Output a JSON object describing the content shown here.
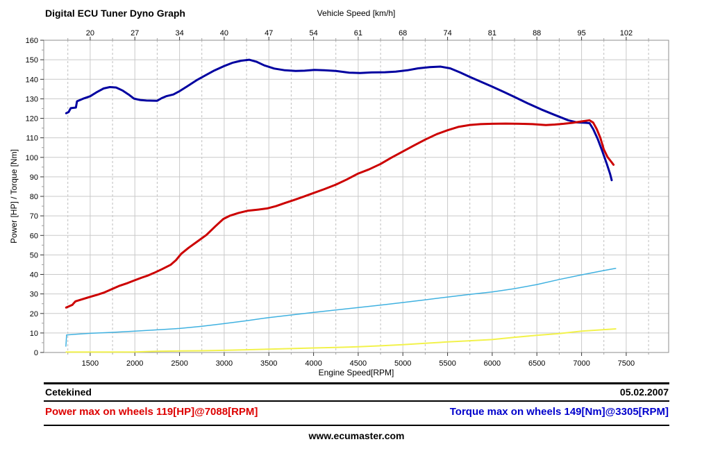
{
  "chart_data": {
    "type": "line",
    "title": "Digital ECU Tuner Dyno Graph",
    "top_axis": {
      "label": "Vehicle Speed [km/h]",
      "tick_labels": [
        "20",
        "27",
        "34",
        "40",
        "47",
        "54",
        "61",
        "68",
        "74",
        "81",
        "88",
        "95",
        "102"
      ]
    },
    "x_axis": {
      "label": "Engine Speed[RPM]",
      "ticks": [
        1500,
        2000,
        2500,
        3000,
        3500,
        4000,
        4500,
        5000,
        5500,
        6000,
        6500,
        7000,
        7500
      ],
      "minor_step": 250,
      "range": [
        980,
        7975
      ]
    },
    "y_axis": {
      "label": "Power [HP] / Torque [Nm]",
      "ticks": [
        0,
        10,
        20,
        30,
        40,
        50,
        60,
        70,
        80,
        90,
        100,
        110,
        120,
        130,
        140,
        150,
        160
      ],
      "minor_step": 5,
      "range": [
        0,
        160
      ]
    },
    "grid": {
      "major": "#c9c9c9",
      "minor": "#bdbdbd",
      "border": "#8c8c8c",
      "tick_major": "#333333",
      "tick_minor": "#a0a0a0"
    },
    "series": [
      {
        "name": "yellow-line",
        "color": "#f2f24b",
        "width": 2,
        "points": [
          [
            1231,
            0.2
          ],
          [
            1600,
            0.2
          ],
          [
            2000,
            0.3
          ],
          [
            2250,
            0.6
          ],
          [
            2500,
            0.8
          ],
          [
            2750,
            0.9
          ],
          [
            3000,
            1.1
          ],
          [
            3250,
            1.4
          ],
          [
            3500,
            1.7
          ],
          [
            3750,
            2.0
          ],
          [
            4000,
            2.3
          ],
          [
            4250,
            2.6
          ],
          [
            4500,
            2.9
          ],
          [
            4750,
            3.4
          ],
          [
            5000,
            4.0
          ],
          [
            5250,
            4.7
          ],
          [
            5500,
            5.4
          ],
          [
            5750,
            6.0
          ],
          [
            6000,
            6.6
          ],
          [
            6250,
            7.8
          ],
          [
            6500,
            8.8
          ],
          [
            6750,
            9.7
          ],
          [
            7000,
            10.9
          ],
          [
            7250,
            11.7
          ],
          [
            7382,
            12.1
          ]
        ]
      },
      {
        "name": "cyan-line",
        "color": "#3fb1e0",
        "width": 1.5,
        "points": [
          [
            1228,
            3.2
          ],
          [
            1236,
            9.0
          ],
          [
            1350,
            9.4
          ],
          [
            1500,
            9.8
          ],
          [
            1750,
            10.3
          ],
          [
            2000,
            10.9
          ],
          [
            2250,
            11.6
          ],
          [
            2500,
            12.3
          ],
          [
            2750,
            13.4
          ],
          [
            3000,
            14.8
          ],
          [
            3250,
            16.3
          ],
          [
            3500,
            17.9
          ],
          [
            3750,
            19.2
          ],
          [
            4000,
            20.5
          ],
          [
            4250,
            21.8
          ],
          [
            4500,
            23.0
          ],
          [
            4750,
            24.3
          ],
          [
            5000,
            25.6
          ],
          [
            5250,
            27.0
          ],
          [
            5500,
            28.4
          ],
          [
            5750,
            29.8
          ],
          [
            6000,
            31.0
          ],
          [
            6250,
            32.7
          ],
          [
            6500,
            34.8
          ],
          [
            6750,
            37.4
          ],
          [
            7000,
            39.8
          ],
          [
            7250,
            42.0
          ],
          [
            7382,
            43.1
          ]
        ]
      },
      {
        "name": "torque-nm",
        "color": "#0000a0",
        "width": 3,
        "points": [
          [
            1231,
            122.6
          ],
          [
            1258,
            123.2
          ],
          [
            1282,
            125.2
          ],
          [
            1340,
            125.5
          ],
          [
            1352,
            128.7
          ],
          [
            1430,
            130.2
          ],
          [
            1500,
            131.3
          ],
          [
            1570,
            133.3
          ],
          [
            1650,
            135.3
          ],
          [
            1720,
            136.0
          ],
          [
            1790,
            135.8
          ],
          [
            1860,
            134.3
          ],
          [
            1930,
            132.2
          ],
          [
            1990,
            130.1
          ],
          [
            2060,
            129.4
          ],
          [
            2130,
            129.1
          ],
          [
            2250,
            129.0
          ],
          [
            2300,
            130.3
          ],
          [
            2350,
            131.3
          ],
          [
            2430,
            132.2
          ],
          [
            2500,
            133.9
          ],
          [
            2590,
            136.5
          ],
          [
            2690,
            139.5
          ],
          [
            2790,
            142.0
          ],
          [
            2890,
            144.5
          ],
          [
            2990,
            146.6
          ],
          [
            3090,
            148.4
          ],
          [
            3190,
            149.5
          ],
          [
            3280,
            150.0
          ],
          [
            3360,
            149.0
          ],
          [
            3450,
            147.1
          ],
          [
            3560,
            145.5
          ],
          [
            3680,
            144.6
          ],
          [
            3800,
            144.3
          ],
          [
            3900,
            144.4
          ],
          [
            4010,
            144.8
          ],
          [
            4120,
            144.6
          ],
          [
            4250,
            144.3
          ],
          [
            4400,
            143.4
          ],
          [
            4520,
            143.2
          ],
          [
            4650,
            143.5
          ],
          [
            4800,
            143.6
          ],
          [
            4920,
            143.9
          ],
          [
            5050,
            144.6
          ],
          [
            5170,
            145.6
          ],
          [
            5300,
            146.2
          ],
          [
            5420,
            146.5
          ],
          [
            5530,
            145.6
          ],
          [
            5640,
            143.5
          ],
          [
            5750,
            141.2
          ],
          [
            5870,
            138.8
          ],
          [
            6000,
            136.2
          ],
          [
            6130,
            133.5
          ],
          [
            6260,
            130.7
          ],
          [
            6400,
            127.6
          ],
          [
            6550,
            124.5
          ],
          [
            6700,
            121.7
          ],
          [
            6850,
            119.0
          ],
          [
            6950,
            117.9
          ],
          [
            7050,
            117.7
          ],
          [
            7090,
            117.5
          ],
          [
            7130,
            114.5
          ],
          [
            7180,
            109.5
          ],
          [
            7230,
            103.5
          ],
          [
            7280,
            97.0
          ],
          [
            7320,
            91.5
          ],
          [
            7338,
            88.3
          ]
        ]
      },
      {
        "name": "power-hp",
        "color": "#cc0000",
        "width": 3,
        "points": [
          [
            1231,
            23.0
          ],
          [
            1300,
            24.4
          ],
          [
            1315,
            25.2
          ],
          [
            1335,
            26.2
          ],
          [
            1420,
            27.4
          ],
          [
            1500,
            28.5
          ],
          [
            1580,
            29.6
          ],
          [
            1660,
            30.8
          ],
          [
            1750,
            32.6
          ],
          [
            1830,
            34.2
          ],
          [
            1920,
            35.6
          ],
          [
            2000,
            37.0
          ],
          [
            2080,
            38.4
          ],
          [
            2150,
            39.5
          ],
          [
            2215,
            40.8
          ],
          [
            2300,
            42.6
          ],
          [
            2400,
            44.9
          ],
          [
            2460,
            47.3
          ],
          [
            2520,
            50.6
          ],
          [
            2600,
            53.6
          ],
          [
            2700,
            56.9
          ],
          [
            2800,
            60.2
          ],
          [
            2900,
            64.6
          ],
          [
            2990,
            68.4
          ],
          [
            3060,
            70.0
          ],
          [
            3160,
            71.5
          ],
          [
            3260,
            72.6
          ],
          [
            3380,
            73.2
          ],
          [
            3480,
            73.8
          ],
          [
            3580,
            75.0
          ],
          [
            3680,
            76.6
          ],
          [
            3780,
            78.1
          ],
          [
            3880,
            79.7
          ],
          [
            4000,
            81.7
          ],
          [
            4120,
            83.7
          ],
          [
            4250,
            86.0
          ],
          [
            4370,
            88.6
          ],
          [
            4500,
            91.7
          ],
          [
            4620,
            93.8
          ],
          [
            4750,
            96.6
          ],
          [
            4870,
            99.8
          ],
          [
            5000,
            103.0
          ],
          [
            5120,
            106.0
          ],
          [
            5250,
            109.1
          ],
          [
            5380,
            111.9
          ],
          [
            5500,
            113.9
          ],
          [
            5620,
            115.6
          ],
          [
            5750,
            116.6
          ],
          [
            5870,
            117.0
          ],
          [
            6000,
            117.2
          ],
          [
            6150,
            117.3
          ],
          [
            6300,
            117.2
          ],
          [
            6450,
            117.0
          ],
          [
            6600,
            116.5
          ],
          [
            6700,
            116.8
          ],
          [
            6800,
            117.2
          ],
          [
            6900,
            117.7
          ],
          [
            7000,
            118.4
          ],
          [
            7088,
            119.0
          ],
          [
            7130,
            117.8
          ],
          [
            7170,
            114.5
          ],
          [
            7210,
            110.0
          ],
          [
            7250,
            104.0
          ],
          [
            7290,
            100.2
          ],
          [
            7320,
            98.5
          ],
          [
            7345,
            97.0
          ],
          [
            7358,
            96.2
          ]
        ]
      }
    ],
    "annotations": {
      "power_max": {
        "value": 119,
        "unit": "HP",
        "rpm": 7088
      },
      "torque_max": {
        "value": 149,
        "unit": "Nm",
        "rpm": 3305
      }
    }
  },
  "footer": {
    "name": "Cetekined",
    "date": "05.02.2007",
    "power_max": "Power max on wheels 119[HP]@7088[RPM]",
    "power_max_color": "#dd0000",
    "torque_max": "Torque max on wheels 149[Nm]@3305[RPM]",
    "torque_max_color": "#0000cc",
    "website": "www.ecumaster.com"
  }
}
